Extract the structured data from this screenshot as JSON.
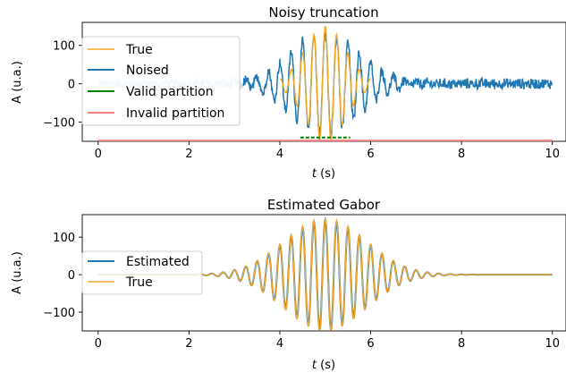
{
  "colors": {
    "true": "#f5a623",
    "noised": "#1f77b4",
    "valid": "#008000",
    "invalid": "#f08080",
    "estimated": "#1f77b4"
  },
  "chart_data": [
    {
      "type": "line",
      "title": "Noisy truncation",
      "xlabel": "t (s)",
      "ylabel": "A (u.a.)",
      "xlim": [
        -0.35,
        10.3
      ],
      "ylim": [
        -150,
        160
      ],
      "xticks": [
        0,
        2,
        4,
        6,
        8,
        10
      ],
      "yticks": [
        100,
        0,
        -100
      ],
      "legend": {
        "placement": "top-left",
        "entries": [
          "True",
          "Noised",
          "Valid partition",
          "Invalid partition"
        ]
      },
      "signal": {
        "description_params": {
          "center": 5.0,
          "width": 0.45,
          "amplitude": 150,
          "frequency": 4.0
        },
        "true": {
          "t_start": 4.0,
          "t_end": 6.0,
          "step": 0.01
        },
        "noised": {
          "t_start": 0.0,
          "t_end": 10.0,
          "step": 0.01,
          "noise_amplitude": 16,
          "faded_until": 3.2
        }
      },
      "segments": [
        {
          "name": "Valid partition",
          "x": [
            4.45,
            5.55
          ],
          "y": -140,
          "style": "dashed"
        },
        {
          "name": "Invalid partition",
          "x": [
            0.0,
            10.0
          ],
          "y": -148,
          "style": "solid"
        }
      ]
    },
    {
      "type": "line",
      "title": "Estimated Gabor",
      "xlabel": "t (s)",
      "ylabel": "A (u.a.)",
      "xlim": [
        -0.35,
        10.3
      ],
      "ylim": [
        -150,
        160
      ],
      "xticks": [
        0,
        2,
        4,
        6,
        8,
        10
      ],
      "yticks": [
        100,
        0,
        -100
      ],
      "legend": {
        "placement": "center-left",
        "entries": [
          "Estimated",
          "True"
        ]
      },
      "signal": {
        "params": {
          "center": 5.0,
          "width": 0.9,
          "amplitude": 150,
          "frequency": 4.0
        },
        "t_start": 0.0,
        "t_end": 10.0,
        "step": 0.01
      }
    }
  ],
  "labels": {
    "top_title": "Noisy truncation",
    "bottom_title": "Estimated Gabor",
    "ylabel": "A (u.a.)",
    "xlabel_italic": "t",
    "xlabel_unit": " (s)",
    "legend_top": [
      "True",
      "Noised",
      "Valid partition",
      "Invalid partition"
    ],
    "legend_bottom": [
      "Estimated",
      "True"
    ]
  }
}
